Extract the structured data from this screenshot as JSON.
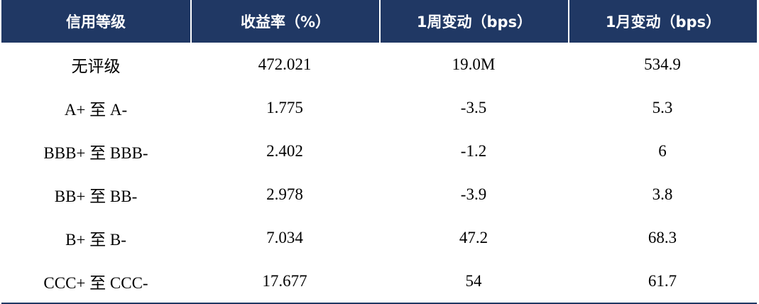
{
  "table": {
    "header": [
      "信用等级",
      "收益率（%）",
      "1周变动（bps）",
      "1月变动（bps）"
    ],
    "rows": [
      [
        "无评级",
        "472.021",
        "19.0M",
        "534.9"
      ],
      [
        "A+ 至 A-",
        "1.775",
        "-3.5",
        "5.3"
      ],
      [
        "BBB+ 至 BBB-",
        "2.402",
        "-1.2",
        "6"
      ],
      [
        "BB+ 至 BB-",
        "2.978",
        "-3.9",
        "3.8"
      ],
      [
        "B+ 至 B-",
        "7.034",
        "47.2",
        "68.3"
      ],
      [
        "CCC+ 至 CCC-",
        "17.677",
        "54",
        "61.7"
      ]
    ]
  }
}
